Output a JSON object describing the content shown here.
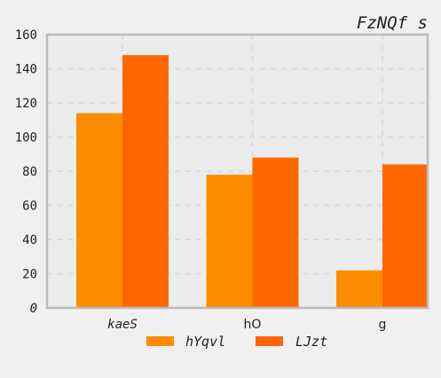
{
  "chart_data": {
    "type": "bar",
    "title": "FzNQf s",
    "categories": [
      "kaeS",
      "hO",
      "g"
    ],
    "category_styles": [
      "italic-mono",
      "sans",
      "sans"
    ],
    "series": [
      {
        "name": "hYqvl",
        "values": [
          114,
          78,
          22
        ],
        "color": "#ff8c00"
      },
      {
        "name": "LJzt",
        "values": [
          148,
          88,
          84
        ],
        "color": "#ff6600"
      }
    ],
    "ylim": [
      0,
      160
    ],
    "yticks": [
      0,
      20,
      40,
      60,
      80,
      100,
      120,
      140,
      160
    ],
    "grid": true,
    "legend_position": "bottom-center",
    "colors": {
      "background": "#f0f0f0",
      "plot_background": "#ececec",
      "axes": "#bbbbbb",
      "grid": "#dddddd"
    }
  }
}
